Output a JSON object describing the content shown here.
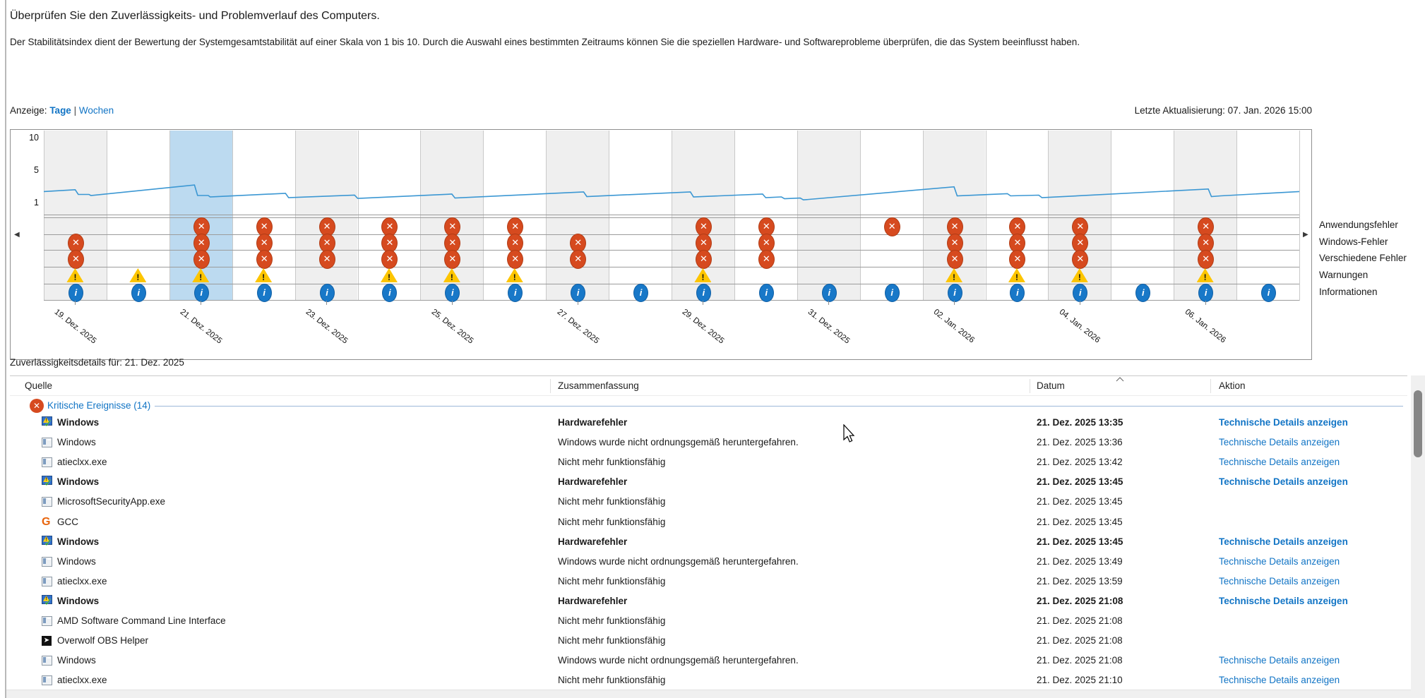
{
  "page": {
    "title": "Überprüfen Sie den Zuverlässigkeits- und Problemverlauf des Computers.",
    "description": "Der Stabilitätsindex dient der Bewertung der Systemgesamtstabilität auf einer Skala von 1 bis 10. Durch die Auswahl eines bestimmten Zeitraums können Sie die speziellen Hardware- und Softwareprobleme überprüfen, die das System beeinflusst haben.",
    "view_label": "Anzeige:",
    "view_days": "Tage",
    "view_separator": "|",
    "view_weeks": "Wochen",
    "last_update": "Letzte Aktualisierung: 07. Jan. 2026 15:00"
  },
  "colors": {
    "title_blue": "#1c3bb8",
    "link_blue": "#1174c5",
    "selected_day": "#bcdaf0",
    "alt_column_gray": "#efefef",
    "error_red": "#d64a1f",
    "warning_yellow": "#fdc500",
    "info_blue": "#1878c8",
    "line_blue": "#3b97d3"
  },
  "chart_data": {
    "type": "line",
    "title": "Stabilitätsindex",
    "ylim": [
      1,
      10
    ],
    "y_ticks": [
      "10",
      "5",
      "1"
    ],
    "columns": 20,
    "selected_column": 3,
    "row_labels": [
      "Anwendungsfehler",
      "Windows-Fehler",
      "Verschiedene Fehler",
      "Warnungen",
      "Informationen"
    ],
    "date_labels": [
      {
        "col": 1,
        "text": "19. Dez. 2025"
      },
      {
        "col": 3,
        "text": "21. Dez. 2025"
      },
      {
        "col": 5,
        "text": "23. Dez. 2025"
      },
      {
        "col": 7,
        "text": "25. Dez. 2025"
      },
      {
        "col": 9,
        "text": "27. Dez. 2025"
      },
      {
        "col": 11,
        "text": "29. Dez. 2025"
      },
      {
        "col": 13,
        "text": "31. Dez. 2025"
      },
      {
        "col": 15,
        "text": "02. Jan. 2026"
      },
      {
        "col": 17,
        "text": "04. Jan. 2026"
      },
      {
        "col": 19,
        "text": "06. Jan. 2026"
      }
    ],
    "icon_grid": [
      [
        0,
        1,
        1,
        1,
        1
      ],
      [
        0,
        0,
        0,
        1,
        1
      ],
      [
        1,
        1,
        1,
        1,
        1
      ],
      [
        1,
        1,
        1,
        1,
        1
      ],
      [
        1,
        1,
        1,
        0,
        1
      ],
      [
        1,
        1,
        1,
        1,
        1
      ],
      [
        1,
        1,
        1,
        1,
        1
      ],
      [
        1,
        1,
        1,
        1,
        1
      ],
      [
        0,
        1,
        1,
        0,
        1
      ],
      [
        0,
        0,
        0,
        0,
        1
      ],
      [
        1,
        1,
        1,
        1,
        1
      ],
      [
        1,
        1,
        1,
        0,
        1
      ],
      [
        0,
        0,
        0,
        0,
        1
      ],
      [
        1,
        0,
        0,
        0,
        1
      ],
      [
        1,
        1,
        1,
        1,
        1
      ],
      [
        1,
        1,
        1,
        1,
        1
      ],
      [
        1,
        1,
        1,
        1,
        1
      ],
      [
        0,
        0,
        0,
        0,
        1
      ],
      [
        1,
        1,
        1,
        1,
        1
      ],
      [
        0,
        0,
        0,
        0,
        1
      ]
    ],
    "stability_line_points": [
      [
        0,
        2.55
      ],
      [
        0.5,
        2.8
      ],
      [
        0.55,
        2.15
      ],
      [
        0.72,
        2.15
      ],
      [
        0.75,
        2.0
      ],
      [
        2.4,
        3.45
      ],
      [
        2.45,
        2.0
      ],
      [
        2.62,
        2.0
      ],
      [
        2.65,
        1.8
      ],
      [
        3.85,
        2.3
      ],
      [
        3.9,
        1.7
      ],
      [
        4.95,
        2.05
      ],
      [
        5.0,
        1.6
      ],
      [
        6.5,
        2.2
      ],
      [
        6.55,
        1.65
      ],
      [
        8.6,
        2.5
      ],
      [
        8.65,
        1.85
      ],
      [
        10.3,
        2.5
      ],
      [
        10.35,
        1.8
      ],
      [
        11.45,
        2.2
      ],
      [
        11.5,
        1.7
      ],
      [
        11.75,
        1.8
      ],
      [
        11.8,
        1.55
      ],
      [
        12.05,
        1.65
      ],
      [
        12.1,
        1.4
      ],
      [
        14.5,
        3.2
      ],
      [
        14.55,
        1.95
      ],
      [
        15.35,
        2.25
      ],
      [
        15.4,
        1.95
      ],
      [
        15.85,
        2.05
      ],
      [
        15.9,
        1.7
      ],
      [
        18.55,
        2.9
      ],
      [
        18.6,
        1.85
      ],
      [
        18.75,
        1.95
      ],
      [
        20,
        2.55
      ]
    ]
  },
  "details": {
    "title": "Zuverlässigkeitsdetails für: 21. Dez. 2025",
    "columns": [
      "Quelle",
      "Zusammenfassung",
      "Datum",
      "Aktion"
    ],
    "group_label": "Kritische Ereignisse (14)",
    "action_label": "Technische Details anzeigen",
    "rows": [
      {
        "icon": "windows",
        "source": "Windows",
        "summary": "Hardwarefehler",
        "date": "21. Dez. 2025 13:35",
        "bold": true,
        "action": true
      },
      {
        "icon": "app",
        "source": "Windows",
        "summary": "Windows wurde nicht ordnungsgemäß heruntergefahren.",
        "date": "21. Dez. 2025 13:36",
        "bold": false,
        "action": true
      },
      {
        "icon": "app",
        "source": "atieclxx.exe",
        "summary": "Nicht mehr funktionsfähig",
        "date": "21. Dez. 2025 13:42",
        "bold": false,
        "action": true
      },
      {
        "icon": "windows",
        "source": "Windows",
        "summary": "Hardwarefehler",
        "date": "21. Dez. 2025 13:45",
        "bold": true,
        "action": true
      },
      {
        "icon": "app",
        "source": "MicrosoftSecurityApp.exe",
        "summary": "Nicht mehr funktionsfähig",
        "date": "21. Dez. 2025 13:45",
        "bold": false,
        "action": false
      },
      {
        "icon": "gcc",
        "source": "GCC",
        "summary": "Nicht mehr funktionsfähig",
        "date": "21. Dez. 2025 13:45",
        "bold": false,
        "action": false
      },
      {
        "icon": "windows",
        "source": "Windows",
        "summary": "Hardwarefehler",
        "date": "21. Dez. 2025 13:45",
        "bold": true,
        "action": true
      },
      {
        "icon": "app",
        "source": "Windows",
        "summary": "Windows wurde nicht ordnungsgemäß heruntergefahren.",
        "date": "21. Dez. 2025 13:49",
        "bold": false,
        "action": true
      },
      {
        "icon": "app",
        "source": "atieclxx.exe",
        "summary": "Nicht mehr funktionsfähig",
        "date": "21. Dez. 2025 13:59",
        "bold": false,
        "action": true
      },
      {
        "icon": "windows",
        "source": "Windows",
        "summary": "Hardwarefehler",
        "date": "21. Dez. 2025 21:08",
        "bold": true,
        "action": true
      },
      {
        "icon": "app",
        "source": "AMD Software Command Line Interface",
        "summary": "Nicht mehr funktionsfähig",
        "date": "21. Dez. 2025 21:08",
        "bold": false,
        "action": false
      },
      {
        "icon": "overwolf",
        "source": "Overwolf OBS Helper",
        "summary": "Nicht mehr funktionsfähig",
        "date": "21. Dez. 2025 21:08",
        "bold": false,
        "action": false
      },
      {
        "icon": "app",
        "source": "Windows",
        "summary": "Windows wurde nicht ordnungsgemäß heruntergefahren.",
        "date": "21. Dez. 2025 21:08",
        "bold": false,
        "action": true
      },
      {
        "icon": "app",
        "source": "atieclxx.exe",
        "summary": "Nicht mehr funktionsfähig",
        "date": "21. Dez. 2025 21:10",
        "bold": false,
        "action": true
      }
    ]
  }
}
